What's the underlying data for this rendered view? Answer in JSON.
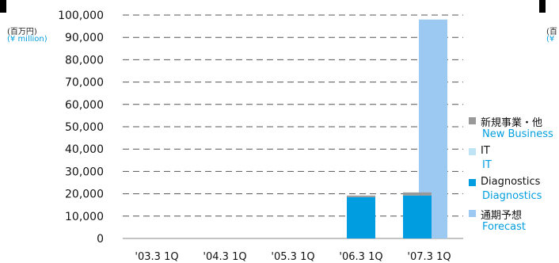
{
  "unit_label": {
    "ja": "(百万円)",
    "en": "(¥ million)"
  },
  "unit_label_right": {
    "ja": "(百",
    "en": "(¥"
  },
  "colors": {
    "new_business": "#999999",
    "it": "#bfe4f6",
    "diagnostics": "#009ee0",
    "forecast": "#9cc9f2",
    "english_text": "#009ee0",
    "grid": "#555555"
  },
  "chart_data": {
    "type": "bar",
    "stacked": true,
    "categories": [
      "'03.3 1Q",
      "'04.3 1Q",
      "'05.3 1Q",
      "'06.3 1Q",
      "'07.3 1Q"
    ],
    "series": [
      {
        "name": "Diagnostics",
        "name_ja": "Diagnostics",
        "values": [
          0,
          0,
          0,
          18500,
          19200
        ]
      },
      {
        "name": "IT",
        "name_ja": "IT",
        "values": [
          0,
          0,
          0,
          0,
          0
        ]
      },
      {
        "name": "New Business",
        "name_ja": "新規事業・他",
        "values": [
          0,
          0,
          0,
          700,
          1400
        ]
      }
    ],
    "forecast": {
      "name": "Forecast",
      "name_ja": "通期予想",
      "category": "'07.3 1Q",
      "value": 98000
    },
    "yticks": [
      "100,000",
      "90,000",
      "80,000",
      "70,000",
      "60,000",
      "50,000",
      "40,000",
      "30,000",
      "20,000",
      "10,000",
      "0"
    ],
    "ylim": [
      0,
      100000
    ],
    "grid": true,
    "legend_position": "right"
  },
  "legend": [
    {
      "ja": "新規事業・他",
      "en": "New Business",
      "color_key": "new_business"
    },
    {
      "ja": "IT",
      "en": "IT",
      "color_key": "it"
    },
    {
      "ja": "Diagnostics",
      "en": "Diagnostics",
      "color_key": "diagnostics"
    },
    {
      "ja": "通期予想",
      "en": "Forecast",
      "color_key": "forecast"
    }
  ]
}
